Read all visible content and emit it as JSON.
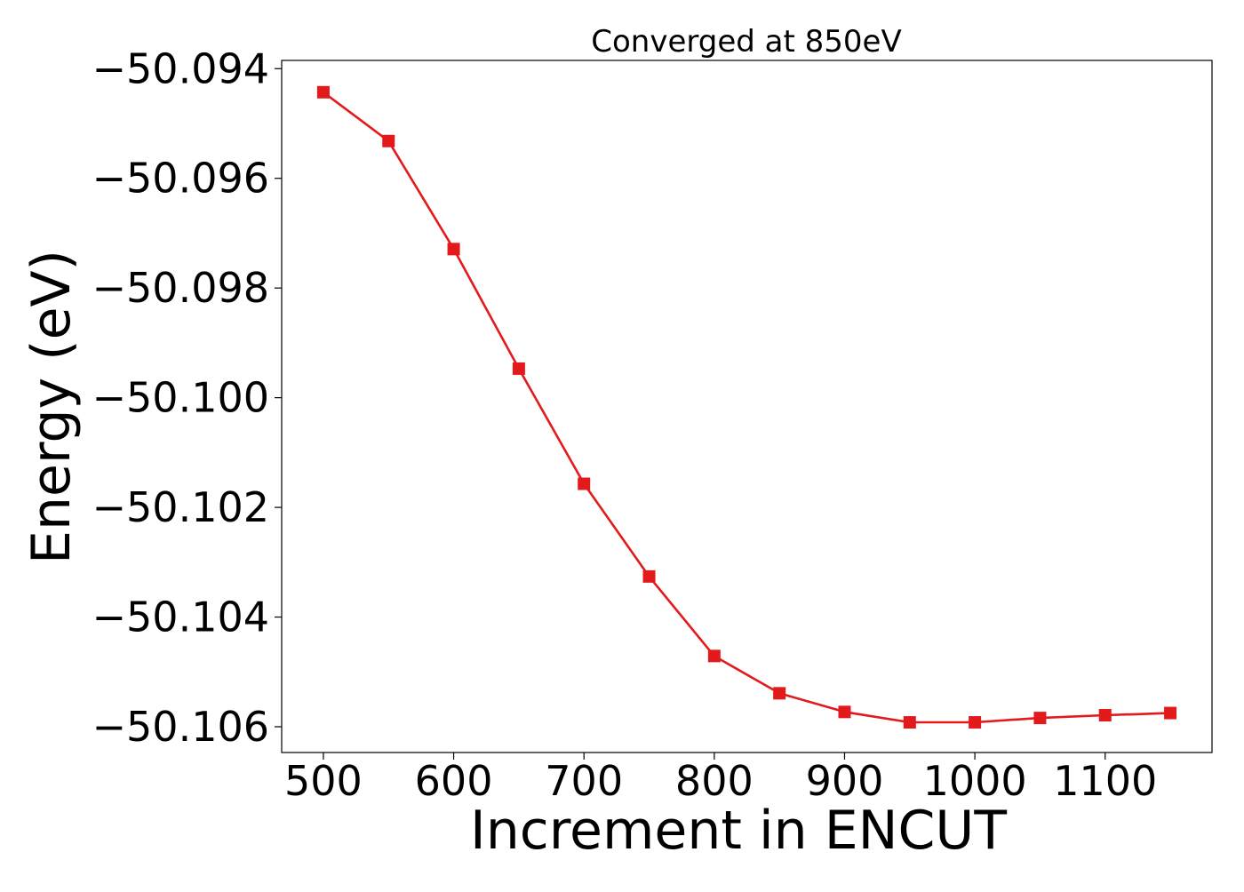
{
  "chart_data": {
    "type": "line",
    "title": "Converged at 850eV",
    "xlabel": "Increment in ENCUT",
    "ylabel": "Energy (eV)",
    "x": [
      500,
      550,
      600,
      650,
      700,
      750,
      800,
      850,
      900,
      950,
      1000,
      1050,
      1100,
      1150
    ],
    "series": [
      {
        "values": [
          -50.09443,
          -50.09532,
          -50.09729,
          -50.09947,
          -50.10157,
          -50.10326,
          -50.10471,
          -50.10539,
          -50.10573,
          -50.10592,
          -50.10592,
          -50.10584,
          -50.10579,
          -50.10575
        ],
        "color": "#e31a1c",
        "marker": "square"
      }
    ],
    "xlim": [
      468,
      1182
    ],
    "ylim": [
      -50.10647,
      -50.09385
    ],
    "xticks": [
      500,
      600,
      700,
      800,
      900,
      1000,
      1100
    ],
    "xtick_labels": [
      "500",
      "600",
      "700",
      "800",
      "900",
      "1000",
      "1100"
    ],
    "yticks": [
      -50.094,
      -50.096,
      -50.098,
      -50.1,
      -50.102,
      -50.104,
      -50.106
    ],
    "ytick_labels": [
      "−50.094",
      "−50.096",
      "−50.098",
      "−50.100",
      "−50.102",
      "−50.104",
      "−50.106"
    ],
    "grid": false,
    "legend": "none"
  }
}
